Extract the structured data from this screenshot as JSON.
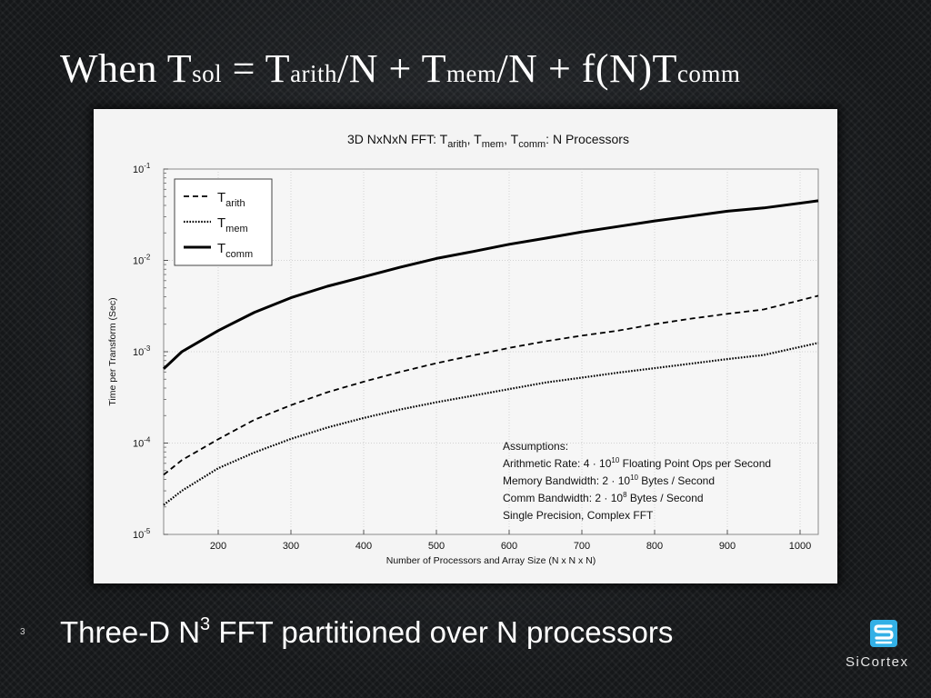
{
  "slide": {
    "title": {
      "t1": "When T",
      "s1": "sol",
      "t2": " = T",
      "s2": "arith",
      "t3": "/N + T",
      "s3": "mem",
      "t4": "/N + f(N)T",
      "s4": "comm"
    },
    "caption": {
      "pre": "Three-D N",
      "sup": "3",
      "post": " FFT partitioned over N processors"
    },
    "slide_number": "3",
    "logo_text": "SiCortex",
    "logo_icon": "sicortex-logo-icon"
  },
  "chart_data": {
    "type": "line",
    "title": {
      "prefix": "3D NxNxN FFT: T",
      "sub1": "arith",
      "sep1": ", T",
      "sub2": "mem",
      "sep2": ", T",
      "sub3": "comm",
      "suffix": ": N Processors"
    },
    "xlabel": "Number of Processors and Array Size (N x N x N)",
    "ylabel": "Time per Transform (Sec)",
    "xlim": [
      125,
      1025
    ],
    "ylim": [
      1e-05,
      0.1
    ],
    "yscale": "log",
    "xticks": [
      200,
      300,
      400,
      500,
      600,
      700,
      800,
      900,
      1000
    ],
    "yticks": [
      {
        "value": 0.1,
        "base": "10",
        "exp": "-1"
      },
      {
        "value": 0.01,
        "base": "10",
        "exp": "-2"
      },
      {
        "value": 0.001,
        "base": "10",
        "exp": "-3"
      },
      {
        "value": 0.0001,
        "base": "10",
        "exp": "-4"
      },
      {
        "value": 1e-05,
        "base": "10",
        "exp": "-5"
      }
    ],
    "grid": true,
    "legend_position": "top-left",
    "x": [
      125,
      150,
      200,
      250,
      300,
      350,
      400,
      450,
      500,
      550,
      600,
      650,
      700,
      750,
      800,
      850,
      900,
      950,
      1025
    ],
    "series": [
      {
        "name": "arith",
        "legend_label": "T",
        "legend_sub": "arith",
        "style": "dashed",
        "values": [
          4.5e-05,
          6.5e-05,
          0.00011,
          0.00018,
          0.00026,
          0.00036,
          0.00047,
          0.0006,
          0.00075,
          0.00091,
          0.0011,
          0.0013,
          0.0015,
          0.0017,
          0.002,
          0.0023,
          0.0026,
          0.0029,
          0.0041
        ]
      },
      {
        "name": "mem",
        "legend_label": "T",
        "legend_sub": "mem",
        "style": "dotted",
        "values": [
          2.1e-05,
          3e-05,
          5.3e-05,
          7.9e-05,
          0.000111,
          0.000148,
          0.000188,
          0.000233,
          0.00028,
          0.00033,
          0.00039,
          0.00046,
          0.00052,
          0.00059,
          0.00066,
          0.00074,
          0.00083,
          0.00092,
          0.00125
        ]
      },
      {
        "name": "comm",
        "legend_label": "T",
        "legend_sub": "comm",
        "style": "solid",
        "values": [
          0.00065,
          0.001,
          0.0017,
          0.0027,
          0.0039,
          0.0052,
          0.0066,
          0.0084,
          0.0105,
          0.0125,
          0.015,
          0.0175,
          0.0205,
          0.0235,
          0.027,
          0.0305,
          0.0345,
          0.0375,
          0.045
        ]
      }
    ],
    "annotations": {
      "heading": "Assumptions:",
      "arith": {
        "pre": "Arithmetic Rate: 4 · 10",
        "exp": "10",
        "post": " Floating Point Ops per Second"
      },
      "mem": {
        "pre": "Memory Bandwidth: 2 · 10",
        "exp": "10",
        "post": " Bytes / Second"
      },
      "comm": {
        "pre": "Comm Bandwidth: 2 · 10",
        "exp": "8",
        "post": " Bytes / Second"
      },
      "precision": "Single Precision, Complex FFT"
    }
  }
}
